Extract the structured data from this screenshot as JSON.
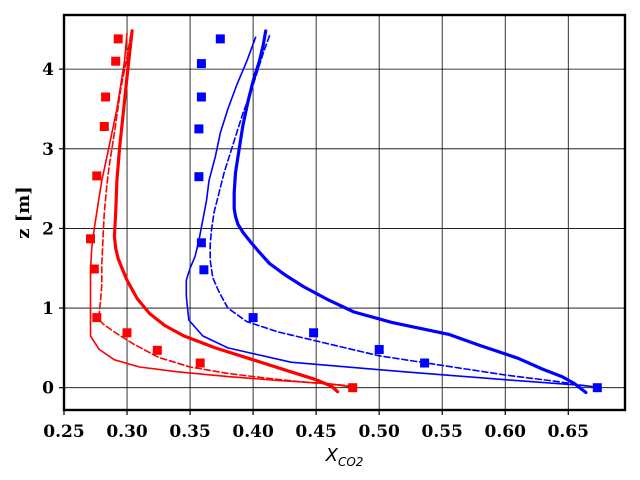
{
  "chart_data": {
    "type": "line",
    "title": "",
    "xlabel": "X",
    "xlabel_subscript": "CO2",
    "ylabel": "z [m]",
    "xlim": [
      0.25,
      0.695
    ],
    "ylim": [
      -0.28,
      4.68
    ],
    "grid": true,
    "legend": "none",
    "xticks": [
      0.25,
      0.3,
      0.35,
      0.4,
      0.45,
      0.5,
      0.55,
      0.6,
      0.65
    ],
    "xtick_labels": [
      "0.25",
      "0.30",
      "0.35",
      "0.40",
      "0.45",
      "0.50",
      "0.55",
      "0.60",
      "0.65"
    ],
    "yticks": [
      0,
      1,
      2,
      3,
      4
    ],
    "ytick_labels": [
      "0",
      "1",
      "2",
      "3",
      "4"
    ],
    "series": [
      {
        "kind": "markers",
        "marker": "square",
        "color": "#ff0000",
        "x": [
          0.293,
          0.291,
          0.283,
          0.282,
          0.276,
          0.271,
          0.274,
          0.276,
          0.3,
          0.324,
          0.358,
          0.479
        ],
        "y": [
          4.38,
          4.1,
          3.65,
          3.28,
          2.66,
          1.87,
          1.49,
          0.88,
          0.69,
          0.47,
          0.31,
          0.0
        ]
      },
      {
        "kind": "markers",
        "marker": "square",
        "color": "#0000ff",
        "x": [
          0.374,
          0.359,
          0.359,
          0.357,
          0.357,
          0.359,
          0.361,
          0.4,
          0.448,
          0.5,
          0.536,
          0.673
        ],
        "y": [
          4.38,
          4.07,
          3.65,
          3.25,
          2.65,
          1.82,
          1.48,
          0.88,
          0.69,
          0.48,
          0.31,
          0.0
        ]
      },
      {
        "kind": "line",
        "style": "thick",
        "color": "#ff0000",
        "x": [
          0.304,
          0.302,
          0.3,
          0.298,
          0.296,
          0.294,
          0.292,
          0.291,
          0.29,
          0.291,
          0.293,
          0.296,
          0.3,
          0.308,
          0.318,
          0.33,
          0.345,
          0.37,
          0.4,
          0.43,
          0.45,
          0.462,
          0.467
        ],
        "y": [
          4.48,
          4.2,
          3.9,
          3.6,
          3.3,
          3.0,
          2.6,
          2.2,
          1.9,
          1.75,
          1.62,
          1.5,
          1.35,
          1.12,
          0.93,
          0.78,
          0.65,
          0.5,
          0.35,
          0.2,
          0.1,
          0.02,
          -0.05
        ]
      },
      {
        "kind": "line",
        "style": "thin",
        "color": "#ff0000",
        "x": [
          0.3,
          0.298,
          0.295,
          0.292,
          0.288,
          0.284,
          0.28,
          0.277,
          0.274,
          0.272,
          0.271,
          0.271,
          0.271,
          0.273,
          0.278,
          0.29,
          0.31,
          0.34,
          0.38,
          0.42,
          0.46,
          0.478
        ],
        "y": [
          4.45,
          4.1,
          3.8,
          3.5,
          3.2,
          2.9,
          2.6,
          2.3,
          2.0,
          1.75,
          1.45,
          1.15,
          0.65,
          0.6,
          0.48,
          0.35,
          0.26,
          0.2,
          0.14,
          0.09,
          0.05,
          0.01
        ]
      },
      {
        "kind": "line",
        "style": "dashed",
        "color": "#ff0000",
        "x": [
          0.303,
          0.3,
          0.295,
          0.29,
          0.286,
          0.284,
          0.282,
          0.281,
          0.28,
          0.28,
          0.279,
          0.278,
          0.278,
          0.281,
          0.29,
          0.305,
          0.325,
          0.35,
          0.38,
          0.41,
          0.44,
          0.465,
          0.479
        ],
        "y": [
          4.43,
          4.15,
          3.75,
          3.2,
          2.8,
          2.55,
          2.2,
          1.9,
          1.55,
          1.3,
          1.1,
          0.95,
          0.85,
          0.8,
          0.7,
          0.55,
          0.38,
          0.26,
          0.18,
          0.12,
          0.07,
          0.04,
          0.02
        ]
      },
      {
        "kind": "line",
        "style": "thick",
        "color": "#0000ff",
        "x": [
          0.41,
          0.408,
          0.405,
          0.4,
          0.396,
          0.392,
          0.389,
          0.386,
          0.385,
          0.385,
          0.386,
          0.388,
          0.392,
          0.398,
          0.405,
          0.413,
          0.425,
          0.44,
          0.46,
          0.48,
          0.51,
          0.555,
          0.58,
          0.61,
          0.63,
          0.645,
          0.655,
          0.664
        ],
        "y": [
          4.48,
          4.3,
          4.1,
          3.85,
          3.6,
          3.3,
          3.0,
          2.7,
          2.45,
          2.25,
          2.15,
          2.05,
          1.95,
          1.83,
          1.7,
          1.56,
          1.42,
          1.27,
          1.1,
          0.95,
          0.82,
          0.67,
          0.53,
          0.37,
          0.23,
          0.14,
          0.05,
          -0.06
        ]
      },
      {
        "kind": "line",
        "style": "thin",
        "color": "#0000ff",
        "x": [
          0.402,
          0.395,
          0.387,
          0.38,
          0.374,
          0.37,
          0.365,
          0.363,
          0.36,
          0.357,
          0.354,
          0.35,
          0.347,
          0.347,
          0.349,
          0.36,
          0.38,
          0.43,
          0.52,
          0.6,
          0.66,
          0.672
        ],
        "y": [
          4.4,
          4.1,
          3.8,
          3.5,
          3.2,
          2.9,
          2.6,
          2.35,
          2.1,
          1.85,
          1.65,
          1.5,
          1.35,
          1.15,
          0.85,
          0.65,
          0.5,
          0.32,
          0.2,
          0.1,
          0.03,
          0.01
        ]
      },
      {
        "kind": "line",
        "style": "dashed",
        "color": "#0000ff",
        "x": [
          0.413,
          0.408,
          0.403,
          0.398,
          0.392,
          0.387,
          0.382,
          0.377,
          0.373,
          0.369,
          0.367,
          0.366,
          0.366,
          0.368,
          0.373,
          0.38,
          0.395,
          0.42,
          0.46,
          0.5,
          0.55,
          0.6,
          0.64,
          0.665
        ],
        "y": [
          4.42,
          4.2,
          3.95,
          3.7,
          3.45,
          3.2,
          2.95,
          2.7,
          2.45,
          2.2,
          1.98,
          1.8,
          1.6,
          1.38,
          1.2,
          1.0,
          0.83,
          0.7,
          0.55,
          0.4,
          0.28,
          0.16,
          0.08,
          0.02
        ]
      }
    ]
  }
}
